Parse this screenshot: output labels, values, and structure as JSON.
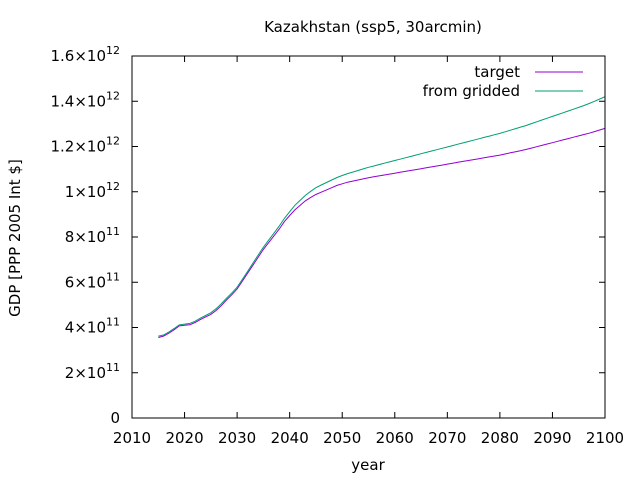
{
  "chart_data": {
    "type": "line",
    "title": "Kazakhstan (ssp5, 30arcmin)",
    "xlabel": "year",
    "ylabel": "GDP [PPP 2005 Int $]",
    "xlim": [
      2010,
      2100
    ],
    "ylim": [
      0,
      1600000000000
    ],
    "grid": false,
    "legend_position": "top-right",
    "x_ticks": [
      2010,
      2020,
      2030,
      2040,
      2050,
      2060,
      2070,
      2080,
      2090,
      2100
    ],
    "y_ticks": [
      {
        "value": 0,
        "mantissa": "0",
        "exponent": ""
      },
      {
        "value": 200000000000,
        "mantissa": "2×10",
        "exponent": "11"
      },
      {
        "value": 400000000000,
        "mantissa": "4×10",
        "exponent": "11"
      },
      {
        "value": 600000000000,
        "mantissa": "6×10",
        "exponent": "11"
      },
      {
        "value": 800000000000,
        "mantissa": "8×10",
        "exponent": "11"
      },
      {
        "value": 1000000000000,
        "mantissa": "1×10",
        "exponent": "12"
      },
      {
        "value": 1200000000000,
        "mantissa": "1.2×10",
        "exponent": "12"
      },
      {
        "value": 1400000000000,
        "mantissa": "1.4×10",
        "exponent": "12"
      },
      {
        "value": 1600000000000,
        "mantissa": "1.6×10",
        "exponent": "12"
      }
    ],
    "x": [
      2015,
      2016,
      2017,
      2018,
      2019,
      2020,
      2021,
      2022,
      2023,
      2024,
      2025,
      2026,
      2027,
      2028,
      2029,
      2030,
      2031,
      2032,
      2033,
      2034,
      2035,
      2036,
      2037,
      2038,
      2039,
      2040,
      2041,
      2042,
      2043,
      2044,
      2045,
      2046,
      2047,
      2048,
      2049,
      2050,
      2051,
      2052,
      2053,
      2054,
      2055,
      2056,
      2057,
      2058,
      2059,
      2060,
      2061,
      2062,
      2063,
      2064,
      2065,
      2066,
      2067,
      2068,
      2069,
      2070,
      2071,
      2072,
      2073,
      2074,
      2075,
      2076,
      2077,
      2078,
      2079,
      2080,
      2081,
      2082,
      2083,
      2084,
      2085,
      2086,
      2087,
      2088,
      2089,
      2090,
      2091,
      2092,
      2093,
      2094,
      2095,
      2096,
      2097,
      2098,
      2099,
      2100
    ],
    "series": [
      {
        "name": "target",
        "color": "#9400d3",
        "values": [
          356000000000.0,
          362000000000.0,
          375000000000.0,
          390000000000.0,
          407000000000.0,
          410000000000.0,
          412000000000.0,
          422000000000.0,
          435000000000.0,
          447000000000.0,
          458000000000.0,
          475000000000.0,
          497000000000.0,
          522000000000.0,
          545000000000.0,
          570000000000.0,
          605000000000.0,
          640000000000.0,
          675000000000.0,
          710000000000.0,
          745000000000.0,
          775000000000.0,
          805000000000.0,
          835000000000.0,
          868000000000.0,
          895000000000.0,
          920000000000.0,
          940000000000.0,
          960000000000.0,
          975000000000.0,
          988000000000.0,
          998000000000.0,
          1008000000000.0,
          1018000000000.0,
          1028000000000.0,
          1035000000000.0,
          1042000000000.0,
          1047000000000.0,
          1052000000000.0,
          1057000000000.0,
          1062000000000.0,
          1066000000000.0,
          1070000000000.0,
          1074000000000.0,
          1078000000000.0,
          1082000000000.0,
          1086000000000.0,
          1090000000000.0,
          1094000000000.0,
          1098000000000.0,
          1102000000000.0,
          1106000000000.0,
          1110000000000.0,
          1114000000000.0,
          1118000000000.0,
          1122000000000.0,
          1126000000000.0,
          1130000000000.0,
          1134000000000.0,
          1138000000000.0,
          1142000000000.0,
          1146000000000.0,
          1150000000000.0,
          1154000000000.0,
          1158000000000.0,
          1162000000000.0,
          1167000000000.0,
          1172000000000.0,
          1177000000000.0,
          1182000000000.0,
          1187000000000.0,
          1193000000000.0,
          1199000000000.0,
          1205000000000.0,
          1211000000000.0,
          1217000000000.0,
          1223000000000.0,
          1229000000000.0,
          1235000000000.0,
          1241000000000.0,
          1247000000000.0,
          1253000000000.0,
          1259000000000.0,
          1266000000000.0,
          1273000000000.0,
          1280000000000.0
        ]
      },
      {
        "name": "from gridded",
        "color": "#009e73",
        "values": [
          362000000000.0,
          367000000000.0,
          380000000000.0,
          395000000000.0,
          412000000000.0,
          415000000000.0,
          418000000000.0,
          428000000000.0,
          441000000000.0,
          453000000000.0,
          465000000000.0,
          483000000000.0,
          505000000000.0,
          530000000000.0,
          553000000000.0,
          578000000000.0,
          613000000000.0,
          648000000000.0,
          684000000000.0,
          720000000000.0,
          755000000000.0,
          786000000000.0,
          817000000000.0,
          848000000000.0,
          882000000000.0,
          912000000000.0,
          940000000000.0,
          962000000000.0,
          984000000000.0,
          1002000000000.0,
          1018000000000.0,
          1030000000000.0,
          1041000000000.0,
          1052000000000.0,
          1063000000000.0,
          1072000000000.0,
          1080000000000.0,
          1087000000000.0,
          1094000000000.0,
          1101000000000.0,
          1108000000000.0,
          1114000000000.0,
          1120000000000.0,
          1126000000000.0,
          1132000000000.0,
          1138000000000.0,
          1144000000000.0,
          1150000000000.0,
          1156000000000.0,
          1162000000000.0,
          1168000000000.0,
          1174000000000.0,
          1180000000000.0,
          1186000000000.0,
          1192000000000.0,
          1198000000000.0,
          1204000000000.0,
          1210000000000.0,
          1216000000000.0,
          1222000000000.0,
          1228000000000.0,
          1234000000000.0,
          1240000000000.0,
          1246000000000.0,
          1252000000000.0,
          1258000000000.0,
          1265000000000.0,
          1272000000000.0,
          1279000000000.0,
          1286000000000.0,
          1293000000000.0,
          1301000000000.0,
          1309000000000.0,
          1317000000000.0,
          1325000000000.0,
          1333000000000.0,
          1341000000000.0,
          1349000000000.0,
          1357000000000.0,
          1365000000000.0,
          1373000000000.0,
          1381000000000.0,
          1390000000000.0,
          1400000000000.0,
          1410000000000.0,
          1420000000000.0
        ]
      }
    ]
  }
}
